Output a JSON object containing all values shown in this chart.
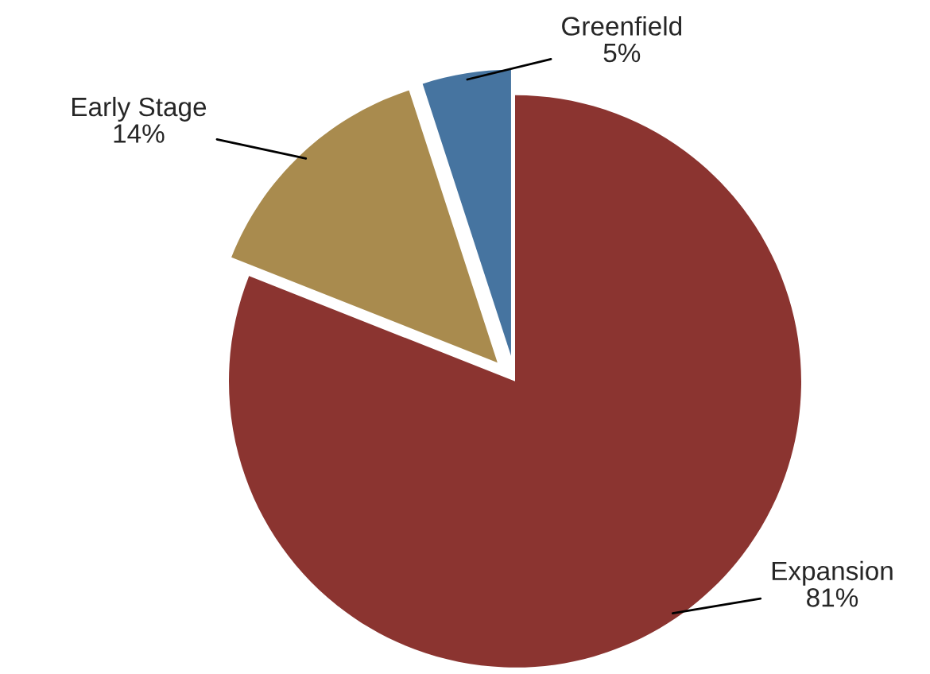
{
  "chart_data": {
    "type": "pie",
    "categories": [
      "Expansion",
      "Early Stage",
      "Greenfield"
    ],
    "values": [
      81,
      14,
      5
    ],
    "value_labels": [
      "81%",
      "14%",
      "5%"
    ],
    "colors": [
      "#8b3430",
      "#a98b4e",
      "#4674a0"
    ]
  }
}
